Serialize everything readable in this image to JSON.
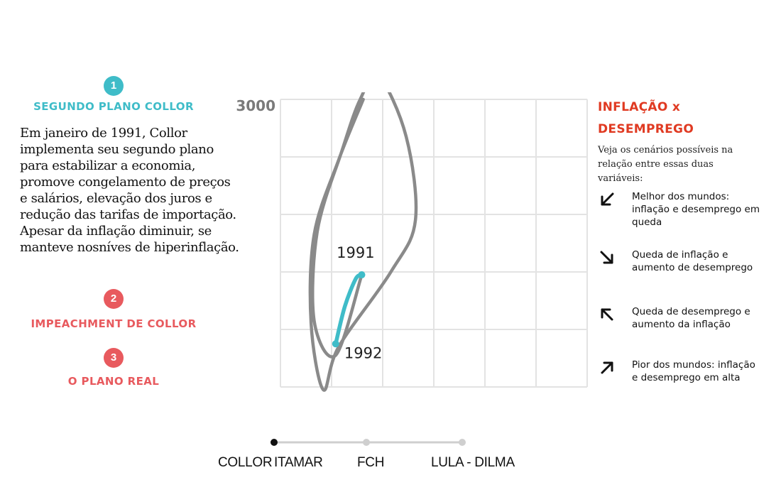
{
  "steps": [
    {
      "number": "1",
      "title": "SEGUNDO PLANO COLLOR",
      "text": "Em janeiro de 1991, Collor implementa seu segundo plano para estabilizar a economia, promove congelamento de preços e salários, elevação dos juros e redução das tarifas de importação. Apesar da inflação diminuir, se manteve nosníves de hiperinflação."
    },
    {
      "number": "2",
      "title": "IMPEACHMENT DE COLLOR"
    },
    {
      "number": "3",
      "title": "O PLANO REAL"
    }
  ],
  "legend": {
    "title_line1": "INFLAÇÃO x",
    "title_line2": "DESEMPREGO",
    "intro": "Veja os cenários possíveis na relação entre essas duas variáveis:",
    "items": [
      {
        "icon": "arrow-down-left-icon",
        "text": "Melhor dos mundos: inflação e desemprego em queda"
      },
      {
        "icon": "arrow-down-right-icon",
        "text": "Queda de inflação e aumento de desemprego"
      },
      {
        "icon": "arrow-up-left-icon",
        "text": "Queda de desemprego e aumento da inflação"
      },
      {
        "icon": "arrow-up-right-icon",
        "text": "Pior dos mundos: inflação e desemprego em alta"
      }
    ]
  },
  "chart_data": {
    "type": "line",
    "ytick_label": "3000",
    "grid": true,
    "trail_color": "#8a8a8a",
    "highlight_color": "#3fbcc8",
    "trail": [
      [
        0.27,
        1.0
      ],
      [
        0.19,
        0.79
      ],
      [
        0.11,
        0.53
      ],
      [
        0.1,
        0.22
      ],
      [
        0.14,
        -0.01
      ],
      [
        0.19,
        0.14
      ],
      [
        0.36,
        0.4
      ],
      [
        0.44,
        0.58
      ],
      [
        0.41,
        0.87
      ],
      [
        0.32,
        1.08
      ],
      [
        0.26,
        1.0
      ],
      [
        0.2,
        0.82
      ],
      [
        0.12,
        0.54
      ],
      [
        0.11,
        0.23
      ],
      [
        0.18,
        0.11
      ],
      [
        0.265,
        0.39
      ]
    ],
    "highlight": [
      [
        0.18,
        0.15
      ],
      [
        0.21,
        0.28
      ],
      [
        0.245,
        0.375
      ],
      [
        0.265,
        0.39
      ]
    ],
    "point_labels": [
      {
        "text": "1991",
        "x": 0.245,
        "y": 0.45
      },
      {
        "text": "1992",
        "x": 0.27,
        "y": 0.1
      }
    ]
  },
  "timeline": {
    "labels": [
      "COLLOR",
      "ITAMAR",
      "FCH",
      "LULA - DILMA"
    ],
    "active": "COLLOR"
  }
}
